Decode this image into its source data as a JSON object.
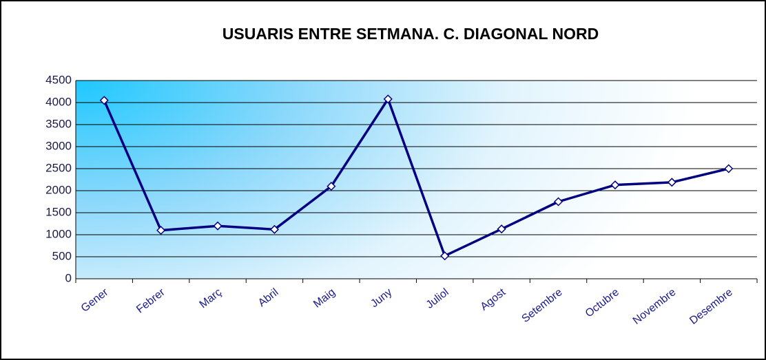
{
  "chart_data": {
    "type": "line",
    "title": "USUARIS ENTRE SETMANA. C. DIAGONAL NORD",
    "categories": [
      "Gener",
      "Febrer",
      "Març",
      "Abril",
      "Maig",
      "Juny",
      "Juliol",
      "Agost",
      "Setembre",
      "Octubre",
      "Novembre",
      "Desembre"
    ],
    "series": [
      {
        "name": "Usuaris",
        "color": "#000080",
        "values": [
          4050,
          1100,
          1200,
          1120,
          2100,
          4080,
          520,
          1130,
          1750,
          2130,
          2190,
          2500
        ]
      }
    ],
    "ylim": [
      0,
      4500
    ],
    "yticks": [
      0,
      500,
      1000,
      1500,
      2000,
      2500,
      3000,
      3500,
      4000,
      4500
    ],
    "grid": true
  }
}
